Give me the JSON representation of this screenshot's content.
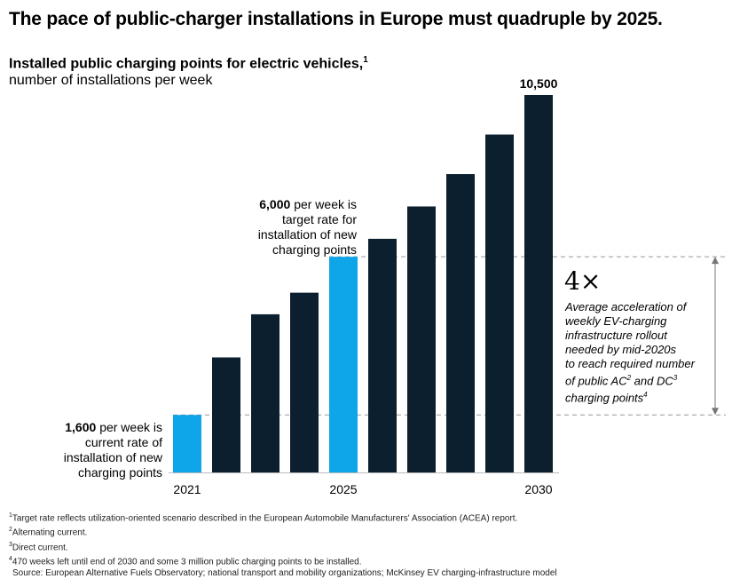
{
  "title": "The pace of public-charger installations in Europe must quadruple by 2025.",
  "subtitle": "Installed public charging points for electric vehicles,",
  "subtitle_sup": "1",
  "unit_label": "number of installations per week",
  "annotations": {
    "start": {
      "value": "1,600",
      "text1": "per week is",
      "text2": "current rate of",
      "text3": "installation of new",
      "text4": "charging points"
    },
    "target": {
      "value": "6,000",
      "text1": "per week is",
      "text2": "target rate for",
      "text3": "installation of new",
      "text4": "charging points"
    },
    "multiplier": "4×",
    "accel_line1": "Average acceleration of",
    "accel_line2": "weekly EV-charging",
    "accel_line3": "infrastructure rollout",
    "accel_line4": "needed by mid-2020s",
    "accel_line5": "to reach required number",
    "accel_line6_a": "of public AC",
    "accel_line6_sup1": "2",
    "accel_line6_b": " and DC",
    "accel_line6_sup2": "3",
    "accel_line7": "charging points",
    "accel_line7_sup": "4"
  },
  "footnotes": {
    "n1_sup": "1",
    "n1": "Target rate reflects utilization-oriented scenario described in the European Automobile Manufacturers' Association (ACEA) report.",
    "n2_sup": "2",
    "n2": "Alternating current.",
    "n3_sup": "3",
    "n3": "Direct current.",
    "n4_sup": "4",
    "n4": "470 weeks left until end of 2030 and some 3 million public charging points to be installed.",
    "source": "Source: European Alternative Fuels Observatory; national transport and mobility organizations; McKinsey EV charging-infrastructure model"
  },
  "colors": {
    "dark": "#0b1f2e",
    "highlight": "#0ea5e9",
    "dashed": "#999999"
  },
  "chart_data": {
    "type": "bar",
    "categories": [
      "2021",
      "2022",
      "2023",
      "2024",
      "2025",
      "2026",
      "2027",
      "2028",
      "2029",
      "2030"
    ],
    "tick_labels": [
      "2021",
      "",
      "",
      "",
      "2025",
      "",
      "",
      "",
      "",
      "2030"
    ],
    "values": [
      1600,
      3200,
      4400,
      5000,
      6000,
      6500,
      7400,
      8300,
      9400,
      10500
    ],
    "highlighted": [
      "2021",
      "2025"
    ],
    "data_labels": {
      "2030": "10,500"
    },
    "ylim": [
      0,
      10500
    ],
    "grid": false
  }
}
